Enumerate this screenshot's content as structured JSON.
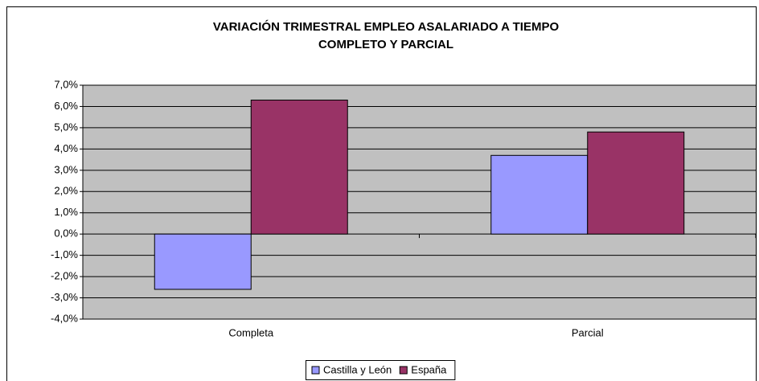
{
  "chart_data": {
    "type": "bar",
    "title": [
      "VARIACIÓN TRIMESTRAL EMPLEO ASALARIADO A TIEMPO",
      "COMPLETO Y PARCIAL"
    ],
    "categories": [
      "Completa",
      "Parcial"
    ],
    "series": [
      {
        "name": "Castilla y León",
        "color": "#9999ff",
        "values": [
          -2.6,
          3.7
        ]
      },
      {
        "name": "España",
        "color": "#993366",
        "values": [
          6.3,
          4.8
        ]
      }
    ],
    "ylim": [
      -4,
      7
    ],
    "yticks": [
      {
        "value": -4,
        "label": "-4,0%"
      },
      {
        "value": -3,
        "label": "-3,0%"
      },
      {
        "value": -2,
        "label": "-2,0%"
      },
      {
        "value": -1,
        "label": "-1,0%"
      },
      {
        "value": 0,
        "label": "0,0%"
      },
      {
        "value": 1,
        "label": "1,0%"
      },
      {
        "value": 2,
        "label": "2,0%"
      },
      {
        "value": 3,
        "label": "3,0%"
      },
      {
        "value": 4,
        "label": "4,0%"
      },
      {
        "value": 5,
        "label": "5,0%"
      },
      {
        "value": 6,
        "label": "6,0%"
      },
      {
        "value": 7,
        "label": "7,0%"
      }
    ],
    "grid": true,
    "legend": "bottom"
  }
}
